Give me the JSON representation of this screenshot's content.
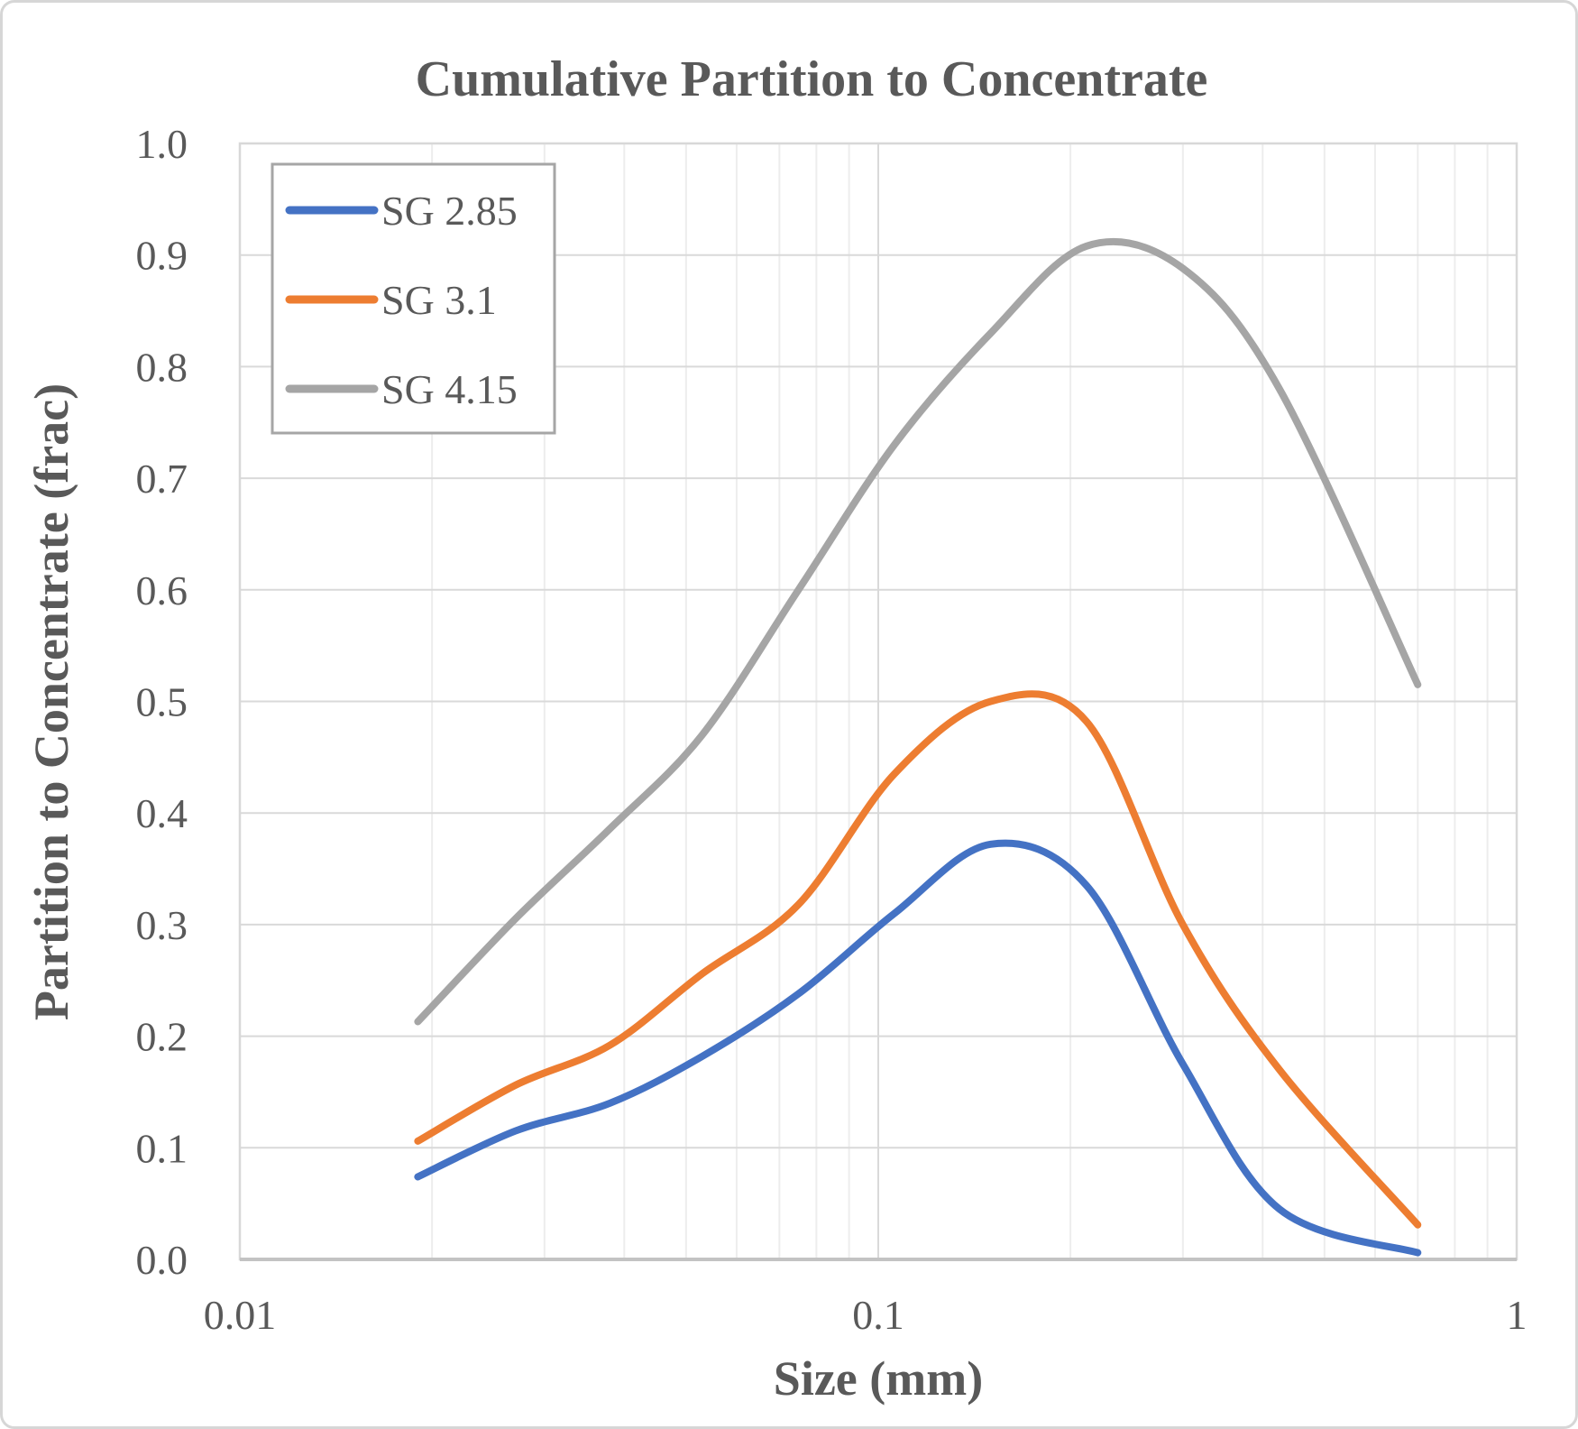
{
  "chart_data": {
    "type": "line",
    "title": "Cumulative Partition to Concentrate",
    "xlabel": "Size (mm)",
    "ylabel": "Partition to Concentrate (frac)",
    "x_scale": "log",
    "xlim": [
      0.01,
      1
    ],
    "ylim": [
      0.0,
      1.0
    ],
    "grid": true,
    "legend_position": "top-left",
    "x_tick_labels": [
      "0.01",
      "0.1",
      "1"
    ],
    "x_tick_values": [
      0.01,
      0.1,
      1
    ],
    "y_tick_labels": [
      "0.0",
      "0.1",
      "0.2",
      "0.3",
      "0.4",
      "0.5",
      "0.6",
      "0.7",
      "0.8",
      "0.9",
      "1.0"
    ],
    "y_tick_values": [
      0.0,
      0.1,
      0.2,
      0.3,
      0.4,
      0.5,
      0.6,
      0.7,
      0.8,
      0.9,
      1.0
    ],
    "x": [
      0.019,
      0.027,
      0.038,
      0.053,
      0.075,
      0.106,
      0.15,
      0.212,
      0.3,
      0.425,
      0.7
    ],
    "series": [
      {
        "name": "SG 2.85",
        "color": "#4472C4",
        "values": [
          0.074,
          0.115,
          0.14,
          0.182,
          0.238,
          0.31,
          0.372,
          0.335,
          0.175,
          0.045,
          0.006
        ]
      },
      {
        "name": "SG 3.1",
        "color": "#ED7D31",
        "values": [
          0.106,
          0.156,
          0.192,
          0.256,
          0.318,
          0.435,
          0.5,
          0.482,
          0.3,
          0.17,
          0.031
        ]
      },
      {
        "name": "SG 4.15",
        "color": "#A5A5A5",
        "values": [
          0.213,
          0.305,
          0.386,
          0.47,
          0.6,
          0.73,
          0.83,
          0.908,
          0.888,
          0.78,
          0.515
        ]
      }
    ]
  },
  "style_colors": {
    "text": "#595959",
    "grid_major": "#D9D9D9",
    "grid_minor": "#EDEDED",
    "plot_frame": "#D8D8D8",
    "axis_line": "#C3C3C3",
    "legend_border": "#A6A6A6"
  }
}
